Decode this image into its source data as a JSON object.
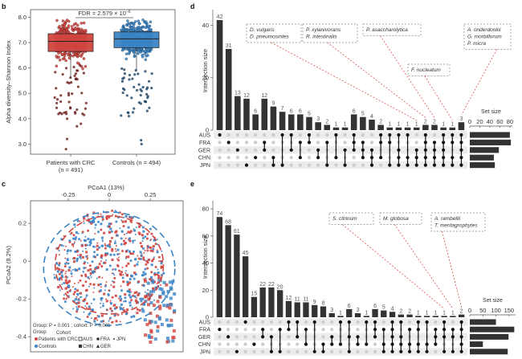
{
  "colors": {
    "crc": "#d2453f",
    "control": "#3b85c6",
    "bar": "#333333",
    "dot_on": "#111111",
    "dot_off": "#cccccc",
    "row_shade": "#ececec",
    "annot_line": "#d9534f",
    "annot_box": "#888888"
  },
  "chart_data": [
    {
      "panel": "b",
      "type": "box",
      "ylabel": "Alpha diversity–Shannon Index",
      "ylim": [
        2.6,
        8.3
      ],
      "yticks": [
        "3.0",
        "4.0",
        "5.0",
        "6.0",
        "7.0",
        "8.0"
      ],
      "ytick_values": [
        3,
        4,
        5,
        6,
        7,
        8
      ],
      "annotation": "FDR = 2.579 × 10",
      "annotation_exp": "−6",
      "groups": [
        {
          "name": "Patients with CRC",
          "n_label": "(n = 491)",
          "q1": 6.65,
          "median": 7.05,
          "q3": 7.35,
          "whisker_low": 5.6,
          "whisker_high": 7.9
        },
        {
          "name": "Controls (n = 494)",
          "n_label": "",
          "q1": 6.8,
          "median": 7.15,
          "q3": 7.42,
          "whisker_low": 5.9,
          "whisker_high": 7.9
        }
      ]
    },
    {
      "panel": "c",
      "type": "scatter",
      "xlabel": "PCoA1 (13%)",
      "ylabel": "PCoA2 (8.2%)",
      "xlim": [
        -0.48,
        0.45
      ],
      "ylim": [
        -0.48,
        0.32
      ],
      "xticks": [
        "-0.25",
        "0",
        "0.25"
      ],
      "xtick_values": [
        -0.25,
        0,
        0.25
      ],
      "yticks": [
        "0.2",
        "0",
        "-0.2",
        "-0.4"
      ],
      "ytick_values": [
        0.2,
        0,
        -0.2,
        -0.4
      ],
      "stats": "Group: P = 0.001 ; cohort: P = 0.001",
      "legend": {
        "group_title": "Group",
        "cohort_title": "Cohort",
        "groups": [
          "Patients with CRC",
          "Controls"
        ],
        "cohorts": [
          "AUS",
          "CHN",
          "FRA",
          "GER",
          "JPN"
        ]
      },
      "legend_position": "bottom-left"
    },
    {
      "panel": "d",
      "type": "upset",
      "ylabel": "Intersection size",
      "ylim": [
        0,
        46
      ],
      "yticks": [
        "0",
        "20",
        "40"
      ],
      "ytick_values": [
        0,
        20,
        40
      ],
      "sets": [
        "AUS",
        "FRA",
        "GER",
        "CHN",
        "JPN"
      ],
      "set_sizes": [
        80,
        82,
        58,
        48,
        50
      ],
      "set_size_title": "Set size",
      "set_size_ticks": [
        "0",
        "20",
        "40",
        "60",
        "80"
      ],
      "set_size_tick_values": [
        0,
        20,
        40,
        60,
        80
      ],
      "set_size_max": 85,
      "intersections": [
        {
          "value": 42,
          "sets": [
            "AUS"
          ]
        },
        {
          "value": 31,
          "sets": [
            "FRA"
          ]
        },
        {
          "value": 13,
          "sets": [
            "GER"
          ]
        },
        {
          "value": 12,
          "sets": [
            "JPN"
          ]
        },
        {
          "value": 6,
          "sets": [
            "CHN"
          ]
        },
        {
          "value": 12,
          "sets": [
            "FRA",
            "GER"
          ]
        },
        {
          "value": 9,
          "sets": [
            "CHN",
            "JPN"
          ]
        },
        {
          "value": 7,
          "sets": [
            "AUS",
            "JPN"
          ]
        },
        {
          "value": 6,
          "sets": [
            "AUS",
            "GER"
          ]
        },
        {
          "value": 6,
          "sets": [
            "FRA",
            "CHN"
          ]
        },
        {
          "value": 5,
          "sets": [
            "AUS",
            "FRA"
          ]
        },
        {
          "value": 3,
          "sets": [
            "GER",
            "CHN"
          ]
        },
        {
          "value": 2,
          "sets": [
            "FRA",
            "JPN"
          ]
        },
        {
          "value": 1,
          "sets": [
            "AUS",
            "CHN"
          ]
        },
        {
          "value": 1,
          "sets": [
            "GER",
            "JPN"
          ]
        },
        {
          "value": 6,
          "sets": [
            "AUS",
            "FRA",
            "GER"
          ]
        },
        {
          "value": 5,
          "sets": [
            "FRA",
            "GER",
            "CHN"
          ]
        },
        {
          "value": 4,
          "sets": [
            "GER",
            "CHN",
            "JPN"
          ]
        },
        {
          "value": 2,
          "sets": [
            "AUS",
            "FRA",
            "CHN"
          ]
        },
        {
          "value": 1,
          "sets": [
            "AUS",
            "FRA",
            "JPN"
          ]
        },
        {
          "value": 1,
          "sets": [
            "AUS",
            "GER",
            "CHN",
            "JPN"
          ]
        },
        {
          "value": 1,
          "sets": [
            "AUS",
            "CHN",
            "JPN"
          ]
        },
        {
          "value": 1,
          "sets": [
            "GER",
            "CHN",
            "JPN"
          ]
        },
        {
          "value": 2,
          "sets": [
            "AUS",
            "FRA",
            "GER",
            "CHN",
            "JPN"
          ]
        },
        {
          "value": 2,
          "sets": [
            "FRA",
            "GER",
            "CHN",
            "JPN"
          ]
        },
        {
          "value": 1,
          "sets": [
            "AUS",
            "FRA",
            "GER",
            "CHN",
            "JPN"
          ]
        },
        {
          "value": 1,
          "sets": [
            "AUS",
            "FRA",
            "CHN",
            "JPN"
          ]
        },
        {
          "value": 3,
          "sets": [
            "AUS",
            "FRA",
            "GER",
            "CHN",
            "JPN"
          ]
        }
      ],
      "annotations": [
        {
          "lines": [
            "D. vulgaris",
            "D. pneumosintes"
          ],
          "target": 22
        },
        {
          "lines": [
            "P. xylanivorans",
            "R. intestinalis"
          ],
          "target": 23
        },
        {
          "lines": [
            "P. asaccharolytica"
          ],
          "target": 24
        },
        {
          "lines": [
            "F. nucleatum"
          ],
          "target": 26
        },
        {
          "lines": [
            "A. onderdonkii",
            "G. morbillorum",
            "P. micra"
          ],
          "target": 27
        }
      ]
    },
    {
      "panel": "e",
      "type": "upset",
      "ylabel": "Intersection size",
      "ylim": [
        0,
        86
      ],
      "yticks": [
        "0",
        "20",
        "40",
        "60",
        "80"
      ],
      "ytick_values": [
        0,
        20,
        40,
        60,
        80
      ],
      "sets": [
        "AUS",
        "FRA",
        "GER",
        "CHN",
        "JPN"
      ],
      "set_sizes": [
        100,
        170,
        148,
        50,
        145
      ],
      "set_size_title": "Set size",
      "set_size_ticks": [
        "0",
        "50",
        "100",
        "150"
      ],
      "set_size_tick_values": [
        0,
        50,
        100,
        150
      ],
      "set_size_max": 175,
      "intersections": [
        {
          "value": 74,
          "sets": [
            "FRA"
          ]
        },
        {
          "value": 68,
          "sets": [
            "GER"
          ]
        },
        {
          "value": 61,
          "sets": [
            "JPN"
          ]
        },
        {
          "value": 45,
          "sets": [
            "AUS"
          ]
        },
        {
          "value": 15,
          "sets": [
            "CHN"
          ]
        },
        {
          "value": 22,
          "sets": [
            "FRA",
            "GER"
          ]
        },
        {
          "value": 22,
          "sets": [
            "GER",
            "JPN"
          ]
        },
        {
          "value": 20,
          "sets": [
            "FRA",
            "JPN"
          ]
        },
        {
          "value": 12,
          "sets": [
            "AUS",
            "FRA"
          ]
        },
        {
          "value": 11,
          "sets": [
            "AUS",
            "GER"
          ]
        },
        {
          "value": 11,
          "sets": [
            "FRA",
            "CHN"
          ]
        },
        {
          "value": 9,
          "sets": [
            "AUS",
            "JPN"
          ]
        },
        {
          "value": 8,
          "sets": [
            "CHN",
            "JPN"
          ]
        },
        {
          "value": 3,
          "sets": [
            "GER",
            "CHN"
          ]
        },
        {
          "value": 1,
          "sets": [
            "AUS",
            "CHN"
          ]
        },
        {
          "value": 6,
          "sets": [
            "AUS",
            "GER",
            "JPN"
          ]
        },
        {
          "value": 3,
          "sets": [
            "GER",
            "CHN"
          ]
        },
        {
          "value": 1,
          "sets": [
            "AUS",
            "CHN"
          ]
        },
        {
          "value": 6,
          "sets": [
            "AUS",
            "FRA",
            "GER"
          ]
        },
        {
          "value": 5,
          "sets": [
            "FRA",
            "CHN",
            "JPN"
          ]
        },
        {
          "value": 4,
          "sets": [
            "AUS",
            "FRA",
            "GER",
            "CHN",
            "JPN"
          ]
        },
        {
          "value": 2,
          "sets": [
            "AUS",
            "GER",
            "CHN",
            "JPN"
          ]
        },
        {
          "value": 2,
          "sets": [
            "FRA",
            "CHN",
            "JPN"
          ]
        },
        {
          "value": 1,
          "sets": [
            "AUS",
            "FRA",
            "CHN",
            "JPN"
          ]
        },
        {
          "value": 1,
          "sets": [
            "AUS",
            "CHN",
            "JPN"
          ]
        },
        {
          "value": 1,
          "sets": [
            "FRA",
            "GER",
            "CHN"
          ]
        },
        {
          "value": 1,
          "sets": [
            "AUS",
            "FRA",
            "GER",
            "JPN"
          ]
        },
        {
          "value": 1,
          "sets": [
            "FRA",
            "GER",
            "JPN"
          ]
        },
        {
          "value": 2,
          "sets": [
            "AUS",
            "FRA",
            "GER",
            "CHN",
            "JPN"
          ]
        }
      ],
      "annotations": [
        {
          "lines": [
            "S. citrinum"
          ],
          "target": 26
        },
        {
          "lines": [
            "M. globosa"
          ],
          "target": 27
        },
        {
          "lines": [
            "A. rambellii",
            "T. mentagrophytes"
          ],
          "target": 28
        }
      ]
    }
  ]
}
